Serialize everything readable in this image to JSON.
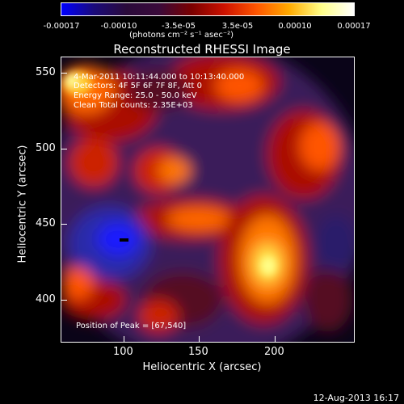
{
  "colorbar": {
    "ticks": [
      "-0.00017",
      "-0.00010",
      "-3.5e-05",
      "3.5e-05",
      "0.00010",
      "0.00017"
    ],
    "unit_label": "(photons cm⁻² s⁻¹ asec⁻²)",
    "colors": [
      "#0000ff",
      "#1a0a7a",
      "#2a0a3a",
      "#3a0a3a",
      "#7a0000",
      "#cc1100",
      "#ff5500",
      "#ffaa00",
      "#ffff88",
      "#ffffff"
    ]
  },
  "title": "Reconstructed RHESSI Image",
  "annotations": {
    "time": "4-Mar-2011 10:11:44.000 to 10:13:40.000",
    "detectors": "Detectors: 4F 5F 6F 7F 8F, Att 0",
    "energy": "Energy Range: 25.0 - 50.0 keV",
    "clean": "Clean     Total counts: 2.35E+03",
    "peak": "Position of Peak = [67,540]"
  },
  "axes": {
    "x_label": "Heliocentric X (arcsec)",
    "y_label": "Heliocentric Y (arcsec)",
    "x_ticks": [
      "100",
      "150",
      "200"
    ],
    "y_ticks": [
      "550",
      "500",
      "450",
      "400"
    ],
    "x_range": [
      60,
      245
    ],
    "y_range": [
      372,
      562
    ]
  },
  "datestamp": "12-Aug-2013 16:17"
}
